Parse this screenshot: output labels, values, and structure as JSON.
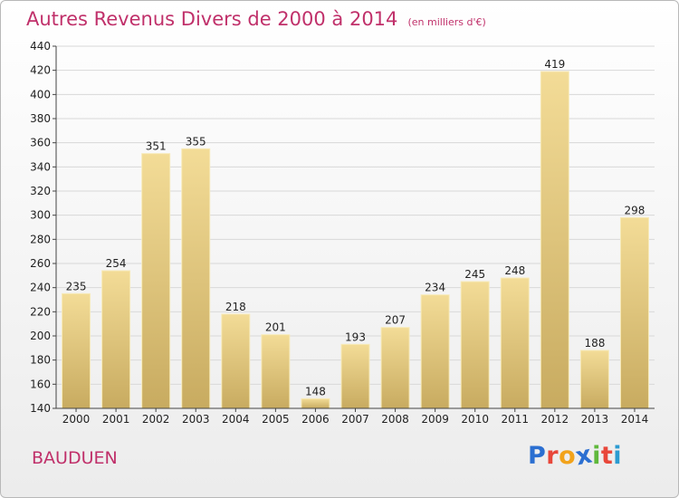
{
  "header": {
    "title": "Autres Revenus Divers de 2000 à 2014",
    "unit": "(en milliers d'€)"
  },
  "footer": {
    "commune": "BAUDUEN",
    "logo_letters": [
      "P",
      "r",
      "o",
      "x",
      "i",
      "t",
      "i"
    ],
    "logo_colors": [
      "#2b6fd1",
      "#e8473a",
      "#f2a31b",
      "#2b6fd1",
      "#5fb83b",
      "#e8473a",
      "#2b9bd1"
    ]
  },
  "colors": {
    "title": "#c0306a",
    "bar_light": "#f3dc97",
    "bar_dark": "#c8ab60",
    "grid": "#d8d8d8",
    "axis_text": "#222222"
  },
  "chart_data": {
    "type": "bar",
    "title": "Autres Revenus Divers de 2000 à 2014",
    "xlabel": "",
    "ylabel": "",
    "categories": [
      "2000",
      "2001",
      "2002",
      "2003",
      "2004",
      "2005",
      "2006",
      "2007",
      "2008",
      "2009",
      "2010",
      "2011",
      "2012",
      "2013",
      "2014"
    ],
    "values": [
      235,
      254,
      351,
      355,
      218,
      201,
      148,
      193,
      207,
      234,
      245,
      248,
      419,
      188,
      298
    ],
    "ylim": [
      140,
      440
    ],
    "yticks": [
      140,
      160,
      180,
      200,
      220,
      240,
      260,
      280,
      300,
      320,
      340,
      360,
      380,
      400,
      420,
      440
    ],
    "grid": true,
    "data_labels": true
  }
}
